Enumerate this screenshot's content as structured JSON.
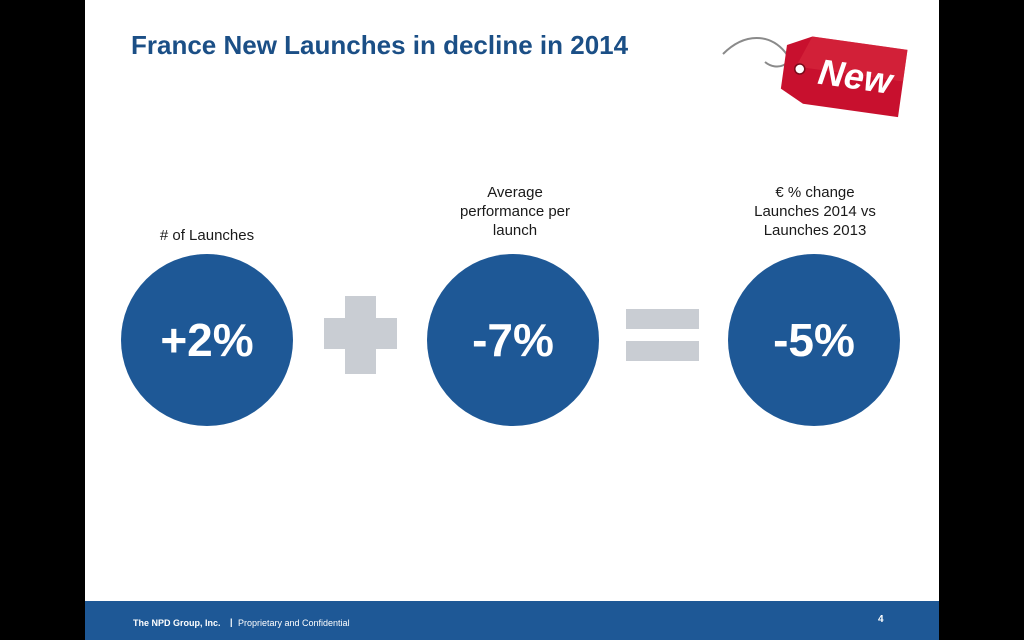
{
  "slide": {
    "title": "France New Launches in decline in 2014",
    "tag_text": "New",
    "tag_color": "#c8102e"
  },
  "metrics": [
    {
      "label_lines": [
        "# of Launches"
      ],
      "value": "+2%"
    },
    {
      "label_lines": [
        "Average",
        "performance per",
        "launch"
      ],
      "value": "-7%"
    },
    {
      "label_lines": [
        "€ % change",
        "Launches 2014 vs",
        "Launches 2013"
      ],
      "value": "-5%"
    }
  ],
  "operators": [
    "plus",
    "equals"
  ],
  "colors": {
    "circle": "#1e5896",
    "title": "#1b4f86",
    "operator": "#c9cdd3",
    "footer": "#1e5896"
  },
  "footer": {
    "company": "The NPD Group, Inc.",
    "separator": "|",
    "confidentiality": "Proprietary and Confidential",
    "page_number": "4"
  }
}
